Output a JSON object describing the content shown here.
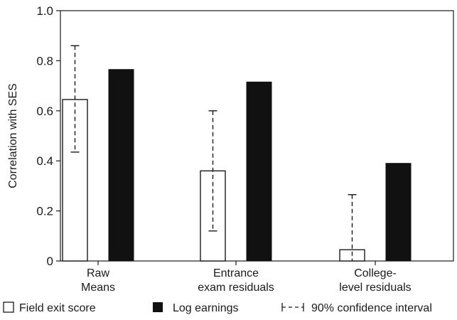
{
  "chart_data": {
    "type": "bar",
    "title": "",
    "xlabel": "",
    "ylabel": "Correlation with SES",
    "ylim": [
      0,
      1.0
    ],
    "yticks": [
      "0",
      "0.2",
      "0.4",
      "0.6",
      "0.8",
      "1.0"
    ],
    "categories": [
      [
        "Raw",
        "Means"
      ],
      [
        "Entrance",
        "exam residuals"
      ],
      [
        "College-",
        "level residuals"
      ]
    ],
    "series": [
      {
        "name": "Field exit score",
        "fill": "#ffffff",
        "values": [
          0.645,
          0.36,
          0.045
        ],
        "ci_low": [
          0.435,
          0.12,
          0.0
        ],
        "ci_high": [
          0.86,
          0.6,
          0.265
        ]
      },
      {
        "name": "Log earnings",
        "fill": "#111111",
        "values": [
          0.765,
          0.715,
          0.39
        ]
      }
    ],
    "legend": {
      "position": "bottom",
      "ci_label": "90% confidence interval"
    },
    "grid": false
  }
}
